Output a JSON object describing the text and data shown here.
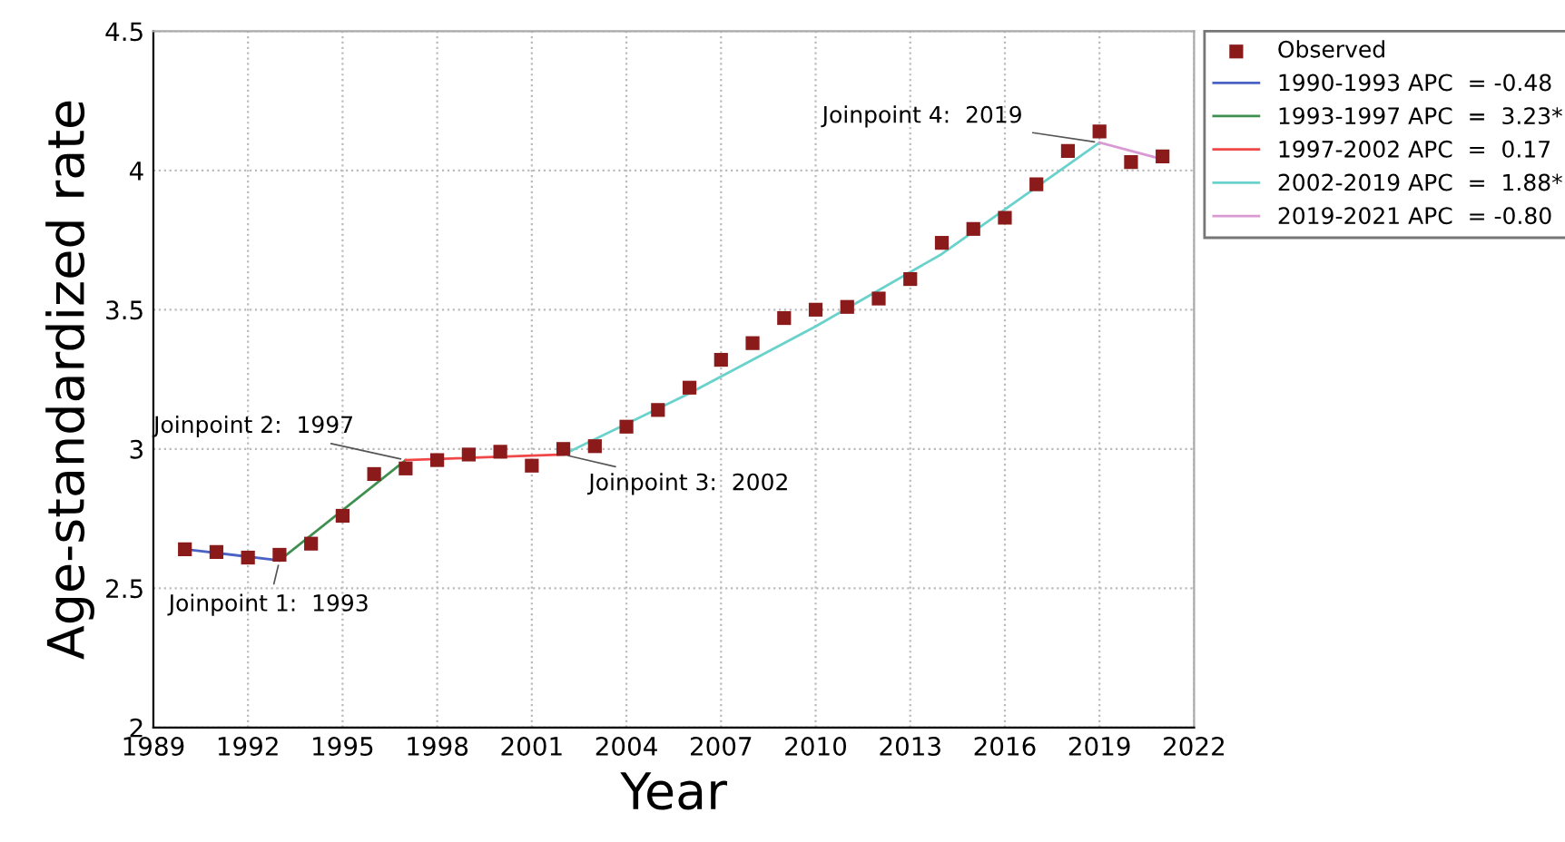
{
  "chart_data": {
    "type": "line",
    "xlabel": "Year",
    "ylabel": "Age-standardized rate",
    "xlim": [
      1989,
      2022
    ],
    "xticks": [
      1989,
      1992,
      1995,
      1998,
      2001,
      2004,
      2007,
      2010,
      2013,
      2016,
      2019,
      2022
    ],
    "ylim": [
      2,
      4.5
    ],
    "yticks": [
      2,
      2.5,
      3,
      3.5,
      4,
      4.5
    ],
    "grid": true,
    "legend": "top right",
    "series": [
      {
        "name": "Observed",
        "type": "scatter",
        "marker": "square",
        "color": "#8b1a1a",
        "x": [
          1990,
          1991,
          1992,
          1993,
          1994,
          1995,
          1996,
          1997,
          1998,
          1999,
          2000,
          2001,
          2002,
          2003,
          2004,
          2005,
          2006,
          2007,
          2008,
          2009,
          2010,
          2011,
          2012,
          2013,
          2014,
          2015,
          2016,
          2017,
          2018,
          2019,
          2020,
          2021
        ],
        "values": [
          2.64,
          2.63,
          2.61,
          2.62,
          2.66,
          2.76,
          2.91,
          2.93,
          2.96,
          2.98,
          2.99,
          2.94,
          3.0,
          3.01,
          3.08,
          3.14,
          3.22,
          3.32,
          3.38,
          3.47,
          3.5,
          3.51,
          3.54,
          3.61,
          3.74,
          3.79,
          3.83,
          3.95,
          4.07,
          4.14,
          4.03,
          4.05
        ]
      },
      {
        "name": "1990-1993 APC  = -0.48",
        "color": "#4a62c4",
        "x": [
          1990,
          1993
        ],
        "values": [
          2.64,
          2.6
        ]
      },
      {
        "name": "1993-1997 APC  =  3.23*",
        "type": "line",
        "color": "#3f8f50",
        "x": [
          1993,
          1997
        ],
        "values": [
          2.6,
          2.96
        ]
      },
      {
        "name": "1997-2002 APC  =  0.17",
        "type": "line",
        "color": "#f04848",
        "x": [
          1997,
          2002
        ],
        "values": [
          2.96,
          2.98
        ]
      },
      {
        "name": "2002-2019 APC  =  1.88*",
        "type": "line",
        "color": "#6ad2cc",
        "x": [
          2002,
          2006,
          2010,
          2014,
          2019
        ],
        "values": [
          2.98,
          3.2,
          3.44,
          3.7,
          4.1
        ]
      },
      {
        "name": "2019-2021 APC  = -0.80",
        "type": "line",
        "color": "#d99ad4",
        "x": [
          2019,
          2021
        ],
        "values": [
          4.1,
          4.04
        ]
      }
    ],
    "annotations": [
      {
        "text": "Joinpoint 1:  1993",
        "x": 1993,
        "y": 2.6
      },
      {
        "text": "Joinpoint 2:  1997",
        "x": 1997,
        "y": 2.96
      },
      {
        "text": "Joinpoint 3:  2002",
        "x": 2002,
        "y": 2.98
      },
      {
        "text": "Joinpoint 4:  2019",
        "x": 2019,
        "y": 4.1
      }
    ]
  }
}
